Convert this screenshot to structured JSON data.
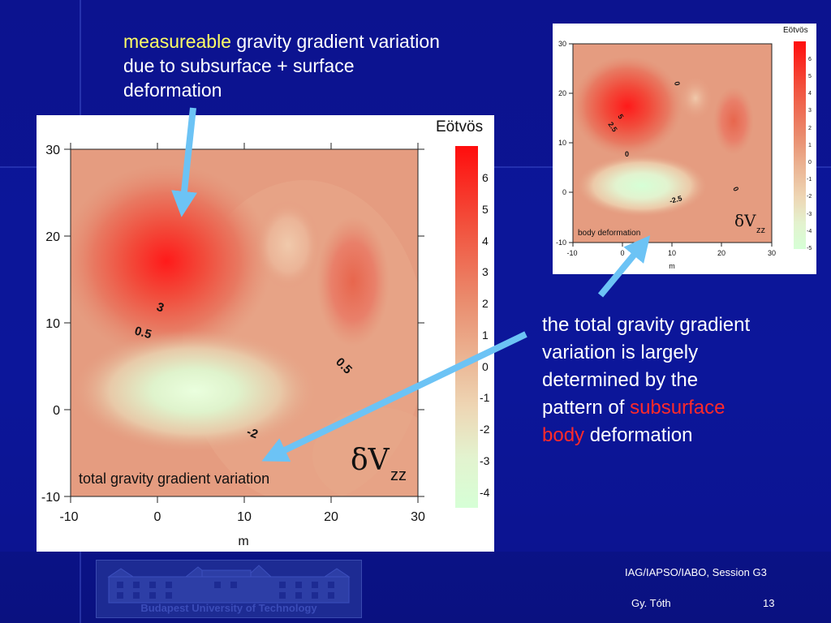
{
  "caption_top": {
    "highlight": "measureable",
    "rest_line1": " gravity gradient variation",
    "line2": "due to subsurface + surface",
    "line3": "deformation"
  },
  "caption_right": {
    "line1": "the total gravity gradient",
    "line2": "variation is largely",
    "line3": "determined by the",
    "line4_prefix": "pattern of ",
    "line4_red": "subsurface",
    "line5_red": "body",
    "line5_rest": " deformation"
  },
  "main_plot": {
    "unit_label": "Eötvös",
    "inner_label": "total gravity gradient variation",
    "symbol": "δV",
    "symbol_sub": "zz",
    "x_title": "m",
    "x_ticks": [
      "-10",
      "0",
      "10",
      "20",
      "30"
    ],
    "y_ticks": [
      "30",
      "20",
      "10",
      "0",
      "-10"
    ],
    "colorbar_ticks": [
      "6",
      "5",
      "4",
      "3",
      "2",
      "1",
      "0",
      "-1",
      "-2",
      "-3",
      "-4"
    ],
    "contour_labels": [
      "3",
      "0.5",
      "0.5",
      "-2"
    ]
  },
  "small_plot": {
    "unit_label": "Eötvös",
    "inner_label": "body deformation",
    "symbol": "δV",
    "symbol_sub": "zz",
    "x_title": "m",
    "x_ticks": [
      "-10",
      "0",
      "10",
      "20",
      "30"
    ],
    "y_ticks": [
      "30",
      "20",
      "10",
      "0",
      "-10"
    ],
    "colorbar_ticks": [
      "6",
      "5",
      "4",
      "3",
      "2",
      "1",
      "0",
      "-1",
      "-2",
      "-3",
      "-4",
      "-5"
    ],
    "contour_labels": [
      "0",
      "5",
      "2.5",
      "0",
      "0",
      "-2.5"
    ]
  },
  "footer": {
    "session": "IAG/IAPSO/IABO, Session G3",
    "author": "Gy. Tóth",
    "page": "13",
    "logo_text": "Budapest University of Technology"
  },
  "colors": {
    "background": "#0c138f",
    "caption_text": "#ffffff",
    "highlight_yellow": "#ffff66",
    "highlight_red": "#ff2a2a",
    "arrow": "#6cc3f5"
  }
}
